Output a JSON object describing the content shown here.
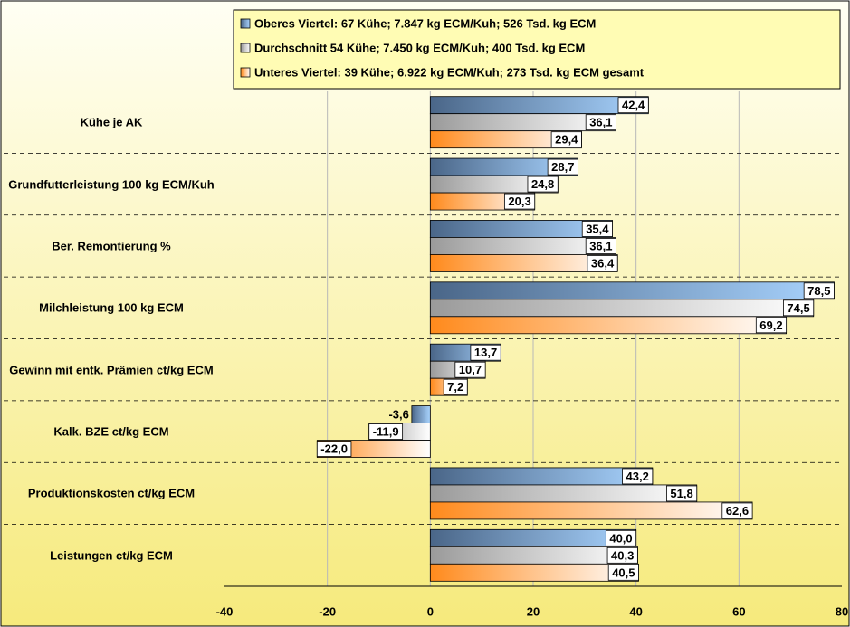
{
  "chart_data": {
    "type": "barh",
    "categories": [
      "Kühe je AK",
      "Grundfutterleistung 100 kg ECM/Kuh",
      "Ber. Remontierung %",
      "Milchleistung 100 kg ECM",
      "Gewinn mit entk. Prämien ct/kg ECM",
      "Kalk. BZE ct/kg ECM",
      "Produktionskosten ct/kg ECM",
      "Leistungen ct/kg ECM"
    ],
    "series": [
      {
        "name": "Oberes Viertel: 67 Kühe; 7.847 kg ECM/Kuh; 526 Tsd. kg ECM",
        "color": "#4a6688",
        "gradient": [
          "#4a6688",
          "#a9d4ff"
        ],
        "values": [
          42.4,
          28.7,
          35.4,
          78.5,
          13.7,
          -3.6,
          43.2,
          40.0
        ],
        "value_labels": [
          "42,4",
          "28,7",
          "35,4",
          "78,5",
          "13,7",
          "-3,6",
          "43,2",
          "40,0"
        ]
      },
      {
        "name": "Durchschnitt 54 Kühe; 7.450 kg ECM/Kuh; 400 Tsd. kg ECM",
        "color": "#9a9a9a",
        "gradient": [
          "#9a9a9a",
          "#ffffff"
        ],
        "values": [
          36.1,
          24.8,
          36.1,
          74.5,
          10.7,
          -11.9,
          51.8,
          40.3
        ],
        "value_labels": [
          "36,1",
          "24,8",
          "36,1",
          "74,5",
          "10,7",
          "-11,9",
          "51,8",
          "40,3"
        ]
      },
      {
        "name": "Unteres Viertel: 39 Kühe; 6.922 kg ECM/Kuh; 273 Tsd. kg ECM gesamt",
        "color": "#ff8a1c",
        "gradient": [
          "#ff8a1c",
          "#ffffff"
        ],
        "values": [
          29.4,
          20.3,
          36.4,
          69.2,
          7.2,
          -22.0,
          62.6,
          40.5
        ],
        "value_labels": [
          "29,4",
          "20,3",
          "36,4",
          "69,2",
          "7,2",
          "-22,0",
          "62,6",
          "40,5"
        ]
      }
    ],
    "xlim": [
      -40,
      80
    ],
    "xticks": [
      -40,
      -20,
      0,
      20,
      40,
      60,
      80
    ],
    "grid": true,
    "legend": "top"
  }
}
